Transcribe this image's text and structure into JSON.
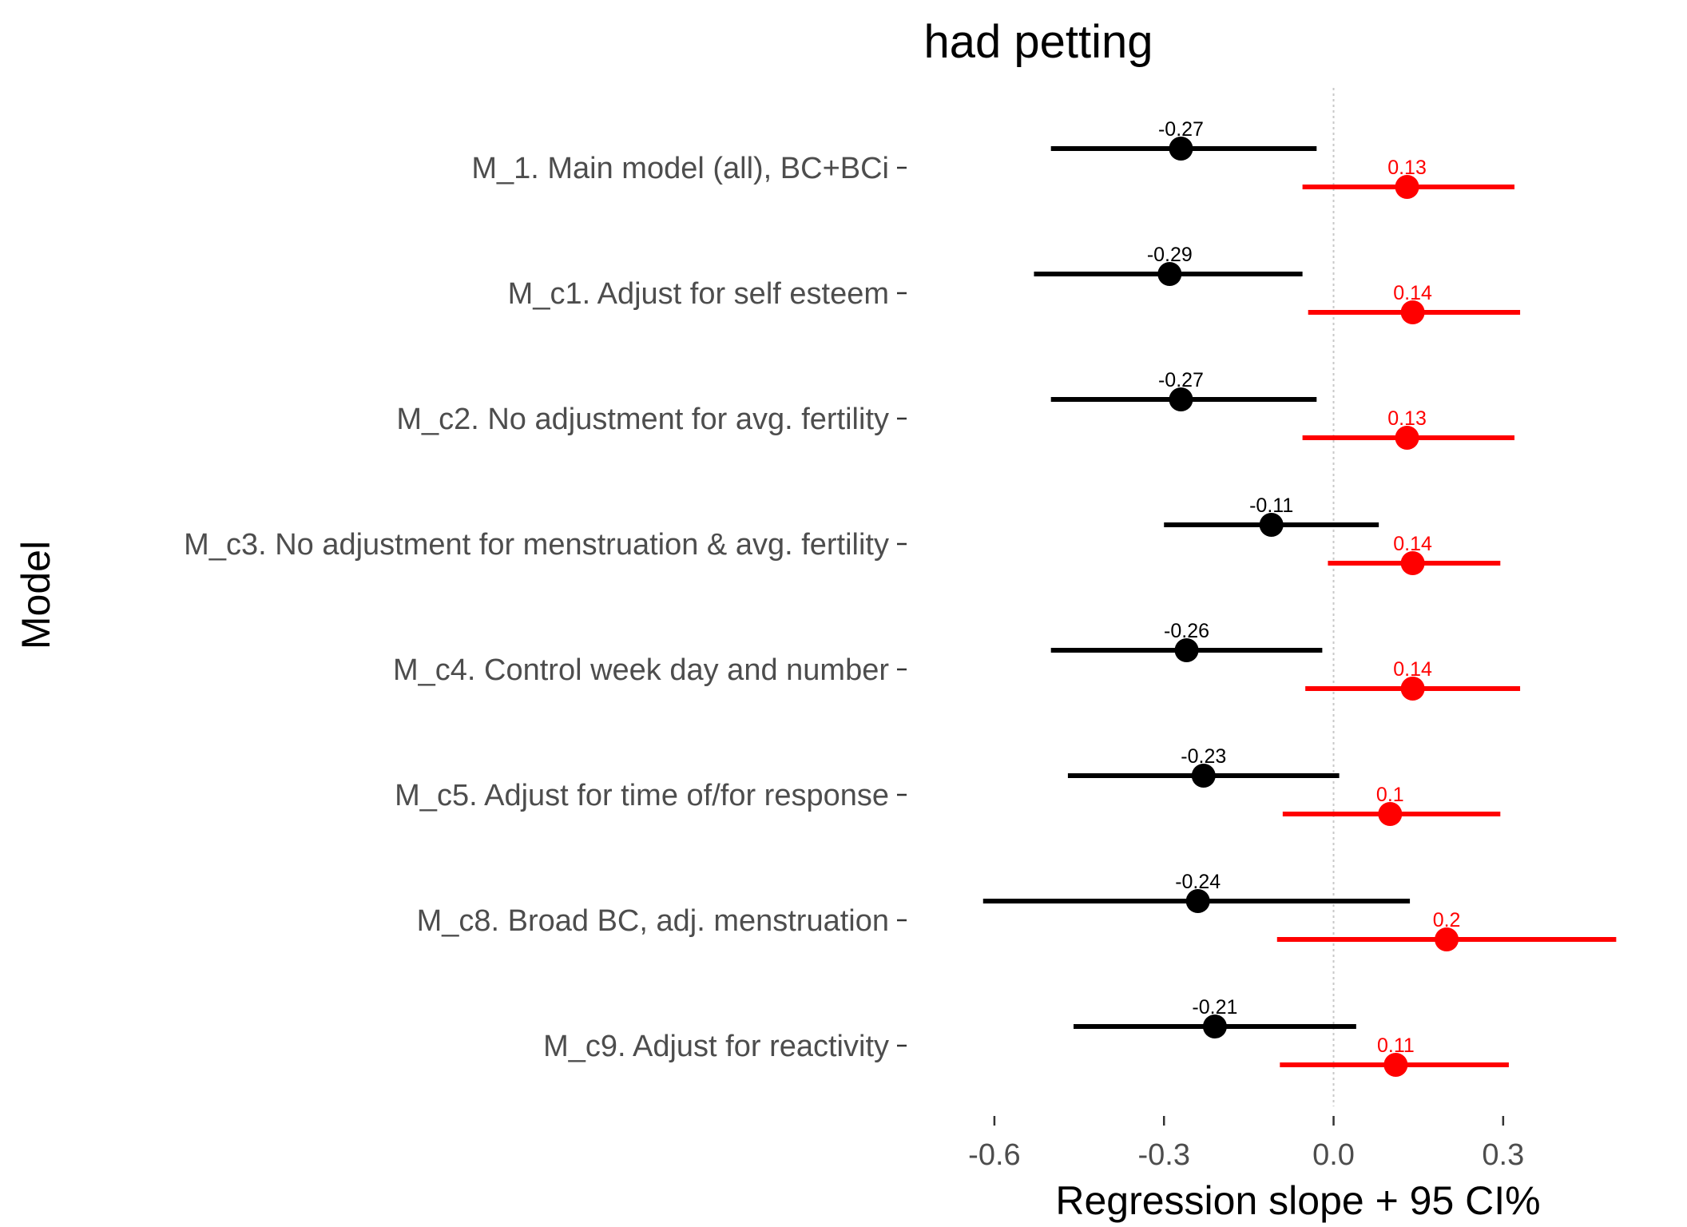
{
  "chart_data": {
    "type": "forest",
    "title": "had petting",
    "xlabel": "Regression slope + 95 CI%",
    "ylabel": "Model",
    "xlim": [
      -0.72,
      0.58
    ],
    "x_ticks": [
      -0.6,
      -0.3,
      0.0,
      0.3
    ],
    "x_tick_labels": [
      "-0.6",
      "-0.3",
      "0.0",
      "0.3"
    ],
    "reference_line": 0,
    "grid": false,
    "categories": [
      "M_1. Main model (all), BC+BCi",
      "M_c1. Adjust for self esteem",
      "M_c2. No adjustment for avg. fertility",
      "M_c3. No adjustment for menstruation & avg. fertility",
      "M_c4. Control week day and number",
      "M_c5. Adjust for time of/for response",
      "M_c8. Broad BC, adj. menstruation",
      "M_c9. Adjust for reactivity"
    ],
    "series": [
      {
        "color": "#000000",
        "estimates": [
          -0.27,
          -0.29,
          -0.27,
          -0.11,
          -0.26,
          -0.23,
          -0.24,
          -0.21
        ],
        "lower": [
          -0.5,
          -0.53,
          -0.5,
          -0.3,
          -0.5,
          -0.47,
          -0.62,
          -0.46
        ],
        "upper": [
          -0.03,
          -0.055,
          -0.03,
          0.08,
          -0.02,
          0.01,
          0.135,
          0.04
        ],
        "labels": [
          "-0.27",
          "-0.29",
          "-0.27",
          "-0.11",
          "-0.26",
          "-0.23",
          "-0.24",
          "-0.21"
        ]
      },
      {
        "color": "#ff0000",
        "estimates": [
          0.13,
          0.14,
          0.13,
          0.14,
          0.14,
          0.1,
          0.2,
          0.11
        ],
        "lower": [
          -0.055,
          -0.045,
          -0.055,
          -0.01,
          -0.05,
          -0.09,
          -0.1,
          -0.095
        ],
        "upper": [
          0.32,
          0.33,
          0.32,
          0.295,
          0.33,
          0.295,
          0.5,
          0.31
        ],
        "labels": [
          "0.13",
          "0.14",
          "0.13",
          "0.14",
          "0.14",
          "0.1",
          "0.2",
          "0.11"
        ]
      }
    ]
  }
}
